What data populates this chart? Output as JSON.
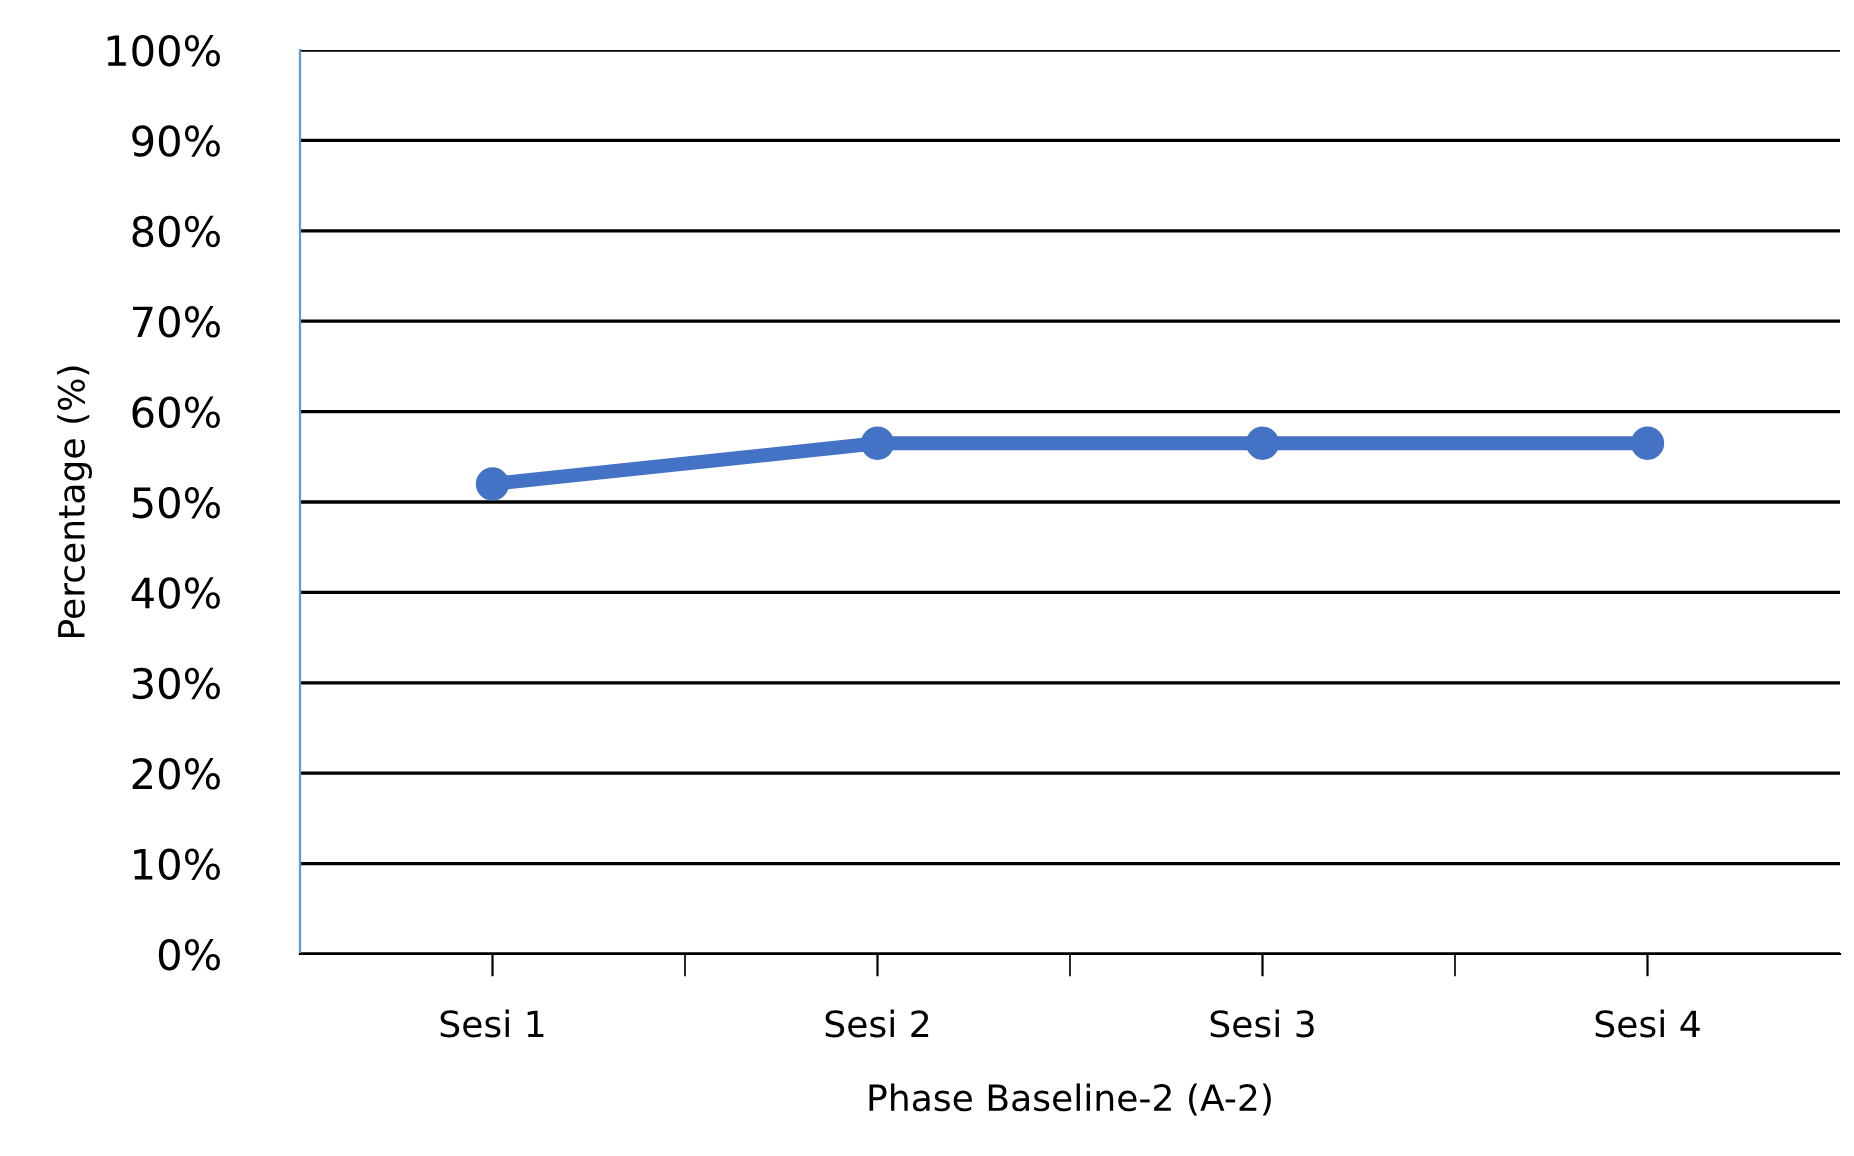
{
  "chart_data": {
    "type": "line",
    "xlabel": "Phase Baseline-2 (A-2)",
    "ylabel": "Percentage (%)",
    "categories": [
      "Sesi 1",
      "Sesi 2",
      "Sesi 3",
      "Sesi 4"
    ],
    "series": [
      {
        "color": "#4472c4",
        "values": [
          52,
          56.5,
          56.5,
          56.5
        ]
      }
    ],
    "ylim": [
      0,
      100
    ],
    "yticks": [
      {
        "value": 0,
        "label": "0%"
      },
      {
        "value": 10,
        "label": "10%"
      },
      {
        "value": 20,
        "label": "20%"
      },
      {
        "value": 30,
        "label": "30%"
      },
      {
        "value": 40,
        "label": "40%"
      },
      {
        "value": 50,
        "label": "50%"
      },
      {
        "value": 60,
        "label": "60%"
      },
      {
        "value": 70,
        "label": "70%"
      },
      {
        "value": 80,
        "label": "80%"
      },
      {
        "value": 90,
        "label": "90%"
      },
      {
        "value": 100,
        "label": "100%"
      }
    ],
    "grid": "y",
    "marker": "circle",
    "line_style": "solid"
  }
}
